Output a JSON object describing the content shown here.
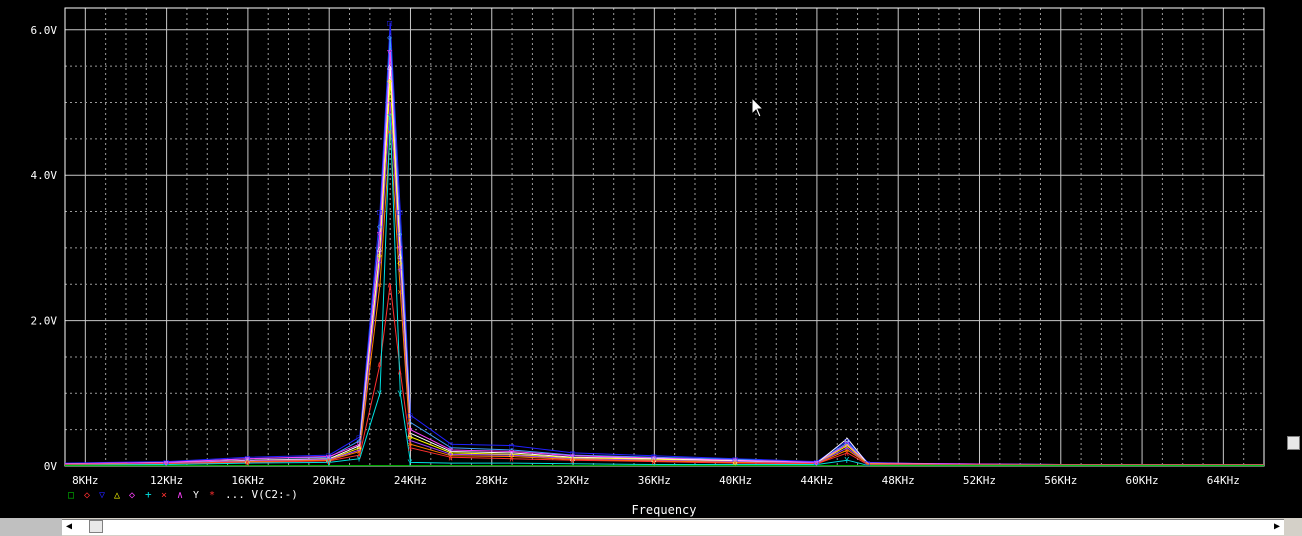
{
  "chart_data": {
    "type": "line",
    "xlabel": "Frequency",
    "ylabel": "",
    "xlim": [
      7000,
      66000
    ],
    "ylim": [
      0,
      6.3
    ],
    "x_ticks": [
      "8KHz",
      "12KHz",
      "16KHz",
      "20KHz",
      "24KHz",
      "28KHz",
      "32KHz",
      "36KHz",
      "40KHz",
      "44KHz",
      "48KHz",
      "52KHz",
      "56KHz",
      "60KHz",
      "64KHz"
    ],
    "x_tick_values": [
      8000,
      12000,
      16000,
      20000,
      24000,
      28000,
      32000,
      36000,
      40000,
      44000,
      48000,
      52000,
      56000,
      60000,
      64000
    ],
    "y_ticks": [
      "0V",
      "2.0V",
      "4.0V",
      "6.0V"
    ],
    "y_tick_values": [
      0,
      2,
      4,
      6
    ],
    "grid": true,
    "legend_placement": "bottom-left",
    "legend_text": "... V(C2:-)",
    "colors": [
      "#ff3030",
      "#ffff00",
      "#ff40ff",
      "#40a0ff",
      "#ffffff",
      "#00c000",
      "#ff8000",
      "#a040ff",
      "#00e0e0",
      "#2020ff"
    ],
    "series": [
      {
        "color": "#2020ff",
        "x": [
          7000,
          12000,
          16000,
          20000,
          21500,
          22500,
          23000,
          23500,
          24000,
          26000,
          29000,
          32000,
          36000,
          40000,
          44000,
          45500,
          46500,
          50000,
          56000,
          66000
        ],
        "y": [
          0.04,
          0.06,
          0.12,
          0.15,
          0.4,
          3.5,
          6.1,
          3.5,
          0.7,
          0.3,
          0.28,
          0.18,
          0.14,
          0.1,
          0.06,
          0.35,
          0.05,
          0.03,
          0.02,
          0.02
        ]
      },
      {
        "color": "#40a0ff",
        "x": [
          7000,
          12000,
          16000,
          20000,
          21500,
          22500,
          23000,
          23500,
          24000,
          26000,
          29000,
          32000,
          36000,
          40000,
          44000,
          45500,
          46500,
          50000,
          56000,
          66000
        ],
        "y": [
          0.03,
          0.05,
          0.1,
          0.12,
          0.35,
          3.3,
          5.9,
          3.2,
          0.6,
          0.25,
          0.22,
          0.15,
          0.12,
          0.09,
          0.05,
          0.32,
          0.04,
          0.03,
          0.02,
          0.02
        ]
      },
      {
        "color": "#ff40ff",
        "x": [
          7000,
          12000,
          16000,
          20000,
          21500,
          22500,
          23000,
          23500,
          24000,
          26000,
          29000,
          32000,
          36000,
          40000,
          44000,
          45500,
          46500,
          50000,
          56000,
          66000
        ],
        "y": [
          0.03,
          0.05,
          0.1,
          0.13,
          0.3,
          3.2,
          5.7,
          3.0,
          0.5,
          0.22,
          0.2,
          0.14,
          0.11,
          0.08,
          0.05,
          0.3,
          0.04,
          0.03,
          0.02,
          0.02
        ]
      },
      {
        "color": "#ffffff",
        "x": [
          7000,
          12000,
          16000,
          20000,
          21500,
          22500,
          23000,
          23500,
          24000,
          26000,
          29000,
          32000,
          36000,
          40000,
          44000,
          45500,
          46500,
          50000,
          56000,
          66000
        ],
        "y": [
          0.02,
          0.04,
          0.08,
          0.1,
          0.28,
          3.0,
          5.5,
          2.9,
          0.45,
          0.2,
          0.18,
          0.12,
          0.1,
          0.07,
          0.04,
          0.38,
          0.03,
          0.02,
          0.02,
          0.02
        ]
      },
      {
        "color": "#ffff00",
        "x": [
          7000,
          12000,
          16000,
          20000,
          21500,
          22500,
          23000,
          23500,
          24000,
          26000,
          29000,
          32000,
          36000,
          40000,
          44000,
          45500,
          46500,
          50000,
          56000,
          66000
        ],
        "y": [
          0.02,
          0.04,
          0.07,
          0.09,
          0.25,
          2.9,
          5.3,
          2.8,
          0.4,
          0.18,
          0.16,
          0.11,
          0.09,
          0.06,
          0.04,
          0.28,
          0.03,
          0.02,
          0.02,
          0.02
        ]
      },
      {
        "color": "#a040ff",
        "x": [
          7000,
          12000,
          16000,
          20000,
          21500,
          22500,
          23000,
          23500,
          24000,
          26000,
          29000,
          32000,
          36000,
          40000,
          44000,
          45500,
          46500,
          50000,
          56000,
          66000
        ],
        "y": [
          0.02,
          0.04,
          0.07,
          0.09,
          0.22,
          2.8,
          5.0,
          2.7,
          0.35,
          0.16,
          0.15,
          0.1,
          0.08,
          0.06,
          0.04,
          0.25,
          0.03,
          0.02,
          0.02,
          0.02
        ]
      },
      {
        "color": "#ff8000",
        "x": [
          7000,
          12000,
          16000,
          20000,
          21500,
          22500,
          23000,
          23500,
          24000,
          26000,
          29000,
          32000,
          36000,
          40000,
          44000,
          45500,
          46500,
          50000,
          56000,
          66000
        ],
        "y": [
          0.02,
          0.03,
          0.06,
          0.08,
          0.2,
          2.5,
          4.6,
          2.4,
          0.3,
          0.14,
          0.13,
          0.09,
          0.07,
          0.05,
          0.03,
          0.22,
          0.03,
          0.02,
          0.02,
          0.02
        ]
      },
      {
        "color": "#ff3030",
        "x": [
          7000,
          12000,
          16000,
          20000,
          21500,
          22500,
          23000,
          23500,
          24000,
          26000,
          29000,
          32000,
          36000,
          40000,
          44000,
          45500,
          46500,
          50000,
          56000,
          66000
        ],
        "y": [
          0.02,
          0.03,
          0.05,
          0.07,
          0.15,
          1.4,
          2.5,
          1.3,
          0.25,
          0.12,
          0.1,
          0.08,
          0.06,
          0.04,
          0.03,
          0.18,
          0.02,
          0.02,
          0.02,
          0.02
        ]
      },
      {
        "color": "#00e0e0",
        "x": [
          7000,
          12000,
          16000,
          20000,
          21500,
          22500,
          23000,
          23500,
          24000,
          26000,
          29000,
          32000,
          36000,
          40000,
          44000,
          45500,
          46500,
          50000,
          56000,
          66000
        ],
        "y": [
          0.01,
          0.02,
          0.04,
          0.05,
          0.1,
          1.0,
          4.8,
          1.0,
          0.05,
          0.04,
          0.04,
          0.03,
          0.02,
          0.02,
          0.02,
          0.08,
          0.01,
          0.01,
          0.01,
          0.01
        ]
      },
      {
        "color": "#00c000",
        "x": [
          7000,
          16000,
          23000,
          30000,
          45500,
          66000
        ],
        "y": [
          0.005,
          0.005,
          0.005,
          0.005,
          0.005,
          0.005
        ]
      }
    ]
  }
}
